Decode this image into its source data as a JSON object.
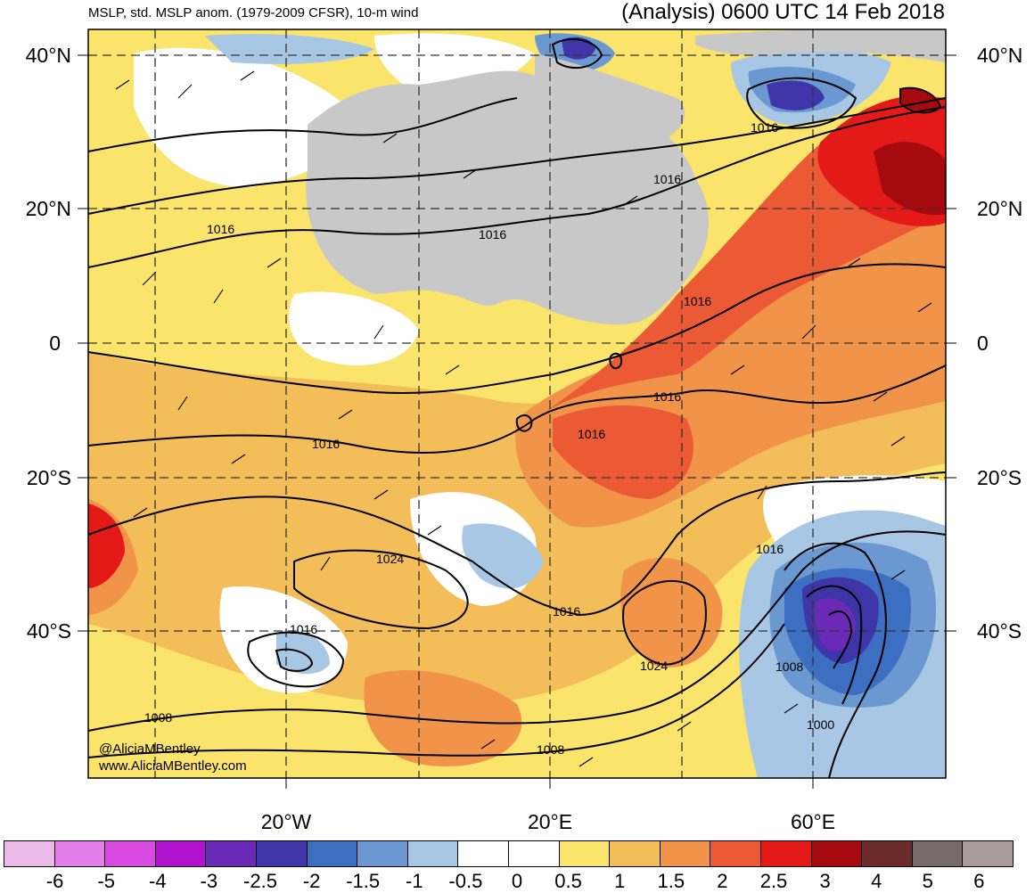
{
  "header": {
    "left_title": "MSLP, std. MSLP anom. (1979-2009 CFSR), 10-m wind",
    "right_title": "(Analysis) 0600 UTC 14 Feb 2018"
  },
  "axes": {
    "lat_labels": [
      "40°N",
      "20°N",
      "0",
      "20°S",
      "40°S"
    ],
    "lon_labels": [
      "20°W",
      "20°E",
      "60°E"
    ]
  },
  "isobar_labels": [
    "1016",
    "1016",
    "1016",
    "1016",
    "1016",
    "1016",
    "1016",
    "1016",
    "1016",
    "1016",
    "1016",
    "1024",
    "1024",
    "1008",
    "1000",
    "1008",
    "1008"
  ],
  "credits": {
    "handle": "@AliciaMBentley",
    "site": "www.AliciaMBentley.com"
  },
  "colorbar": {
    "colors": [
      "#ecb9e8",
      "#e47ee9",
      "#d94ae0",
      "#b112cf",
      "#6a2ab5",
      "#3e35a8",
      "#3c6fc2",
      "#6b98d0",
      "#a7c7e5",
      "#ffffff",
      "#ffffff",
      "#fbe46c",
      "#f3bd5a",
      "#f1944a",
      "#ec5a35",
      "#e31a18",
      "#a50a0e",
      "#6b2b2b",
      "#776a69",
      "#a89c9b"
    ],
    "labels": [
      "-6",
      "-5",
      "-4",
      "-3",
      "-2.5",
      "-2",
      "-1.5",
      "-1",
      "-0.5",
      "0",
      "0.5",
      "1",
      "1.5",
      "2",
      "2.5",
      "3",
      "4",
      "5",
      "6"
    ]
  }
}
